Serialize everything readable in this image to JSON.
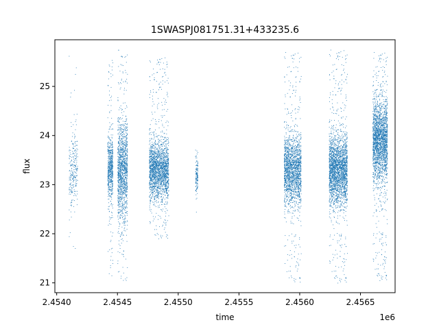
{
  "chart_data": {
    "type": "scatter",
    "title": "1SWASPJ081751.31+433235.6",
    "xlabel": "time",
    "ylabel": "flux",
    "x_offset_label": "1e6",
    "xlim": [
      2453985,
      2456785
    ],
    "ylim": [
      20.8,
      25.95
    ],
    "x_ticks": [
      2454000,
      2454500,
      2455000,
      2455500,
      2456000,
      2456500
    ],
    "x_tick_labels": [
      "2.4540",
      "2.4545",
      "2.4550",
      "2.4555",
      "2.4560",
      "2.4565"
    ],
    "y_ticks": [
      21,
      22,
      23,
      24,
      25
    ],
    "y_tick_labels": [
      "21",
      "22",
      "23",
      "24",
      "25"
    ],
    "grid": false,
    "marker_color": "#1f77b4",
    "observing_seasons": [
      {
        "x_range": [
          2454100,
          2454170
        ],
        "y_center": 23.3,
        "y_spread": 0.35,
        "y_min": 21.6,
        "y_max": 25.7,
        "points": 260
      },
      {
        "x_range": [
          2454418,
          2454460
        ],
        "y_center": 23.3,
        "y_spread": 0.35,
        "y_min": 21.1,
        "y_max": 25.6,
        "points": 650
      },
      {
        "x_range": [
          2454500,
          2454580
        ],
        "y_center": 23.3,
        "y_spread": 0.5,
        "y_min": 21.0,
        "y_max": 25.75,
        "points": 1400
      },
      {
        "x_range": [
          2454760,
          2454920
        ],
        "y_center": 23.3,
        "y_spread": 0.3,
        "y_min": 21.9,
        "y_max": 25.6,
        "points": 2200
      },
      {
        "x_range": [
          2455140,
          2455160
        ],
        "y_center": 23.2,
        "y_spread": 0.18,
        "y_min": 22.4,
        "y_max": 24.0,
        "points": 140
      },
      {
        "x_range": [
          2455870,
          2456010
        ],
        "y_center": 23.3,
        "y_spread": 0.35,
        "y_min": 21.0,
        "y_max": 25.7,
        "points": 2000
      },
      {
        "x_range": [
          2456240,
          2456390
        ],
        "y_center": 23.3,
        "y_spread": 0.35,
        "y_min": 21.0,
        "y_max": 25.75,
        "points": 2600
      },
      {
        "x_range": [
          2456600,
          2456720
        ],
        "y_center": 23.9,
        "y_spread": 0.4,
        "y_min": 21.05,
        "y_max": 25.7,
        "points": 2400
      }
    ]
  }
}
